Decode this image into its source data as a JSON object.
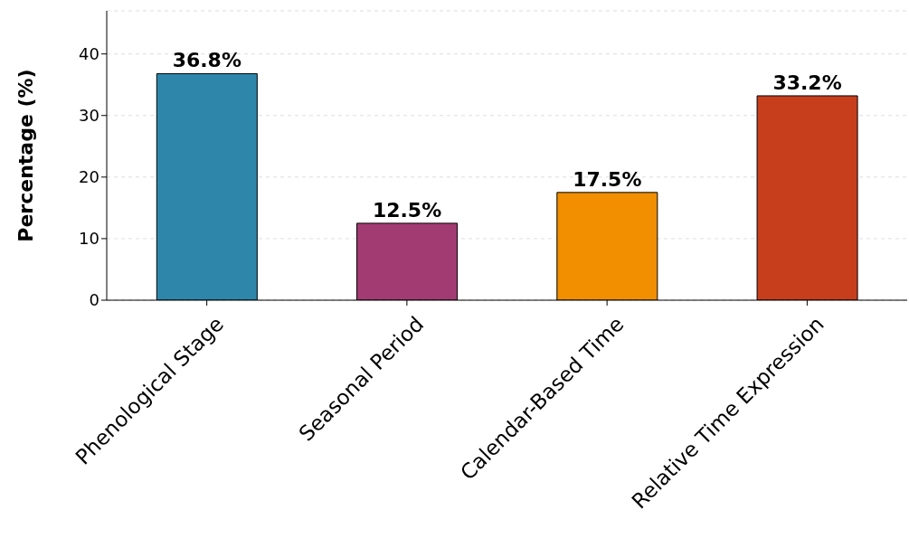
{
  "chart_data": {
    "type": "bar",
    "ylabel": "Percentage (%)",
    "categories": [
      "Phenological Stage",
      "Seasonal Period",
      "Calendar-Based Time",
      "Relative Time Expression"
    ],
    "values": [
      36.8,
      12.5,
      17.5,
      33.2
    ],
    "colors": [
      "#2e86ab",
      "#a23b72",
      "#f18f01",
      "#c73e1d"
    ],
    "value_labels": [
      "36.8%",
      "12.5%",
      "17.5%",
      "33.2%"
    ],
    "ylim": [
      0,
      47
    ],
    "yticks": [
      0,
      10,
      20,
      30,
      40
    ],
    "grid": "y"
  }
}
